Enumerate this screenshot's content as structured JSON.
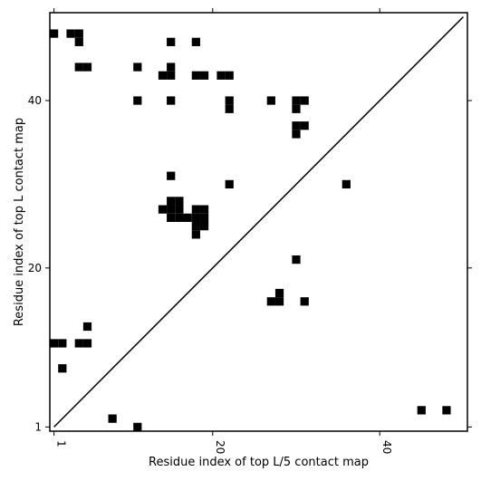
{
  "chart_data": {
    "type": "heatmap",
    "title": "",
    "xlabel": "Residue index of top L/5 contact map",
    "ylabel": "Residue index of top L contact map",
    "xlim": [
      0.5,
      50.5
    ],
    "ylim": [
      0.5,
      50.5
    ],
    "x_ticks": [
      1,
      20,
      40
    ],
    "y_ticks": [
      1,
      20,
      40
    ],
    "x_tick_rotation": -90,
    "grid": false,
    "diagonal": {
      "from": [
        1,
        1
      ],
      "to": [
        50,
        50
      ],
      "color": "#000000"
    },
    "cell_color": "#000000",
    "cells": [
      [
        1,
        48
      ],
      [
        3,
        48
      ],
      [
        4,
        48
      ],
      [
        4,
        47
      ],
      [
        15,
        47
      ],
      [
        18,
        47
      ],
      [
        4,
        44
      ],
      [
        5,
        44
      ],
      [
        11,
        44
      ],
      [
        15,
        44
      ],
      [
        14,
        43
      ],
      [
        15,
        43
      ],
      [
        18,
        43
      ],
      [
        19,
        43
      ],
      [
        21,
        43
      ],
      [
        22,
        43
      ],
      [
        11,
        40
      ],
      [
        15,
        40
      ],
      [
        22,
        40
      ],
      [
        22,
        39
      ],
      [
        27,
        40
      ],
      [
        30,
        40
      ],
      [
        31,
        40
      ],
      [
        30,
        39
      ],
      [
        30,
        37
      ],
      [
        31,
        37
      ],
      [
        30,
        36
      ],
      [
        15,
        31
      ],
      [
        22,
        30
      ],
      [
        36,
        30
      ],
      [
        15,
        28
      ],
      [
        16,
        28
      ],
      [
        14,
        27
      ],
      [
        15,
        27
      ],
      [
        16,
        27
      ],
      [
        18,
        27
      ],
      [
        19,
        27
      ],
      [
        15,
        26
      ],
      [
        16,
        26
      ],
      [
        17,
        26
      ],
      [
        18,
        26
      ],
      [
        19,
        26
      ],
      [
        18,
        25
      ],
      [
        19,
        25
      ],
      [
        18,
        24
      ],
      [
        30,
        21
      ],
      [
        28,
        17
      ],
      [
        27,
        16
      ],
      [
        28,
        16
      ],
      [
        31,
        16
      ],
      [
        5,
        13
      ],
      [
        1,
        11
      ],
      [
        2,
        11
      ],
      [
        4,
        11
      ],
      [
        5,
        11
      ],
      [
        2,
        8
      ],
      [
        8,
        2
      ],
      [
        11,
        1
      ],
      [
        45,
        3
      ],
      [
        48,
        3
      ]
    ]
  }
}
